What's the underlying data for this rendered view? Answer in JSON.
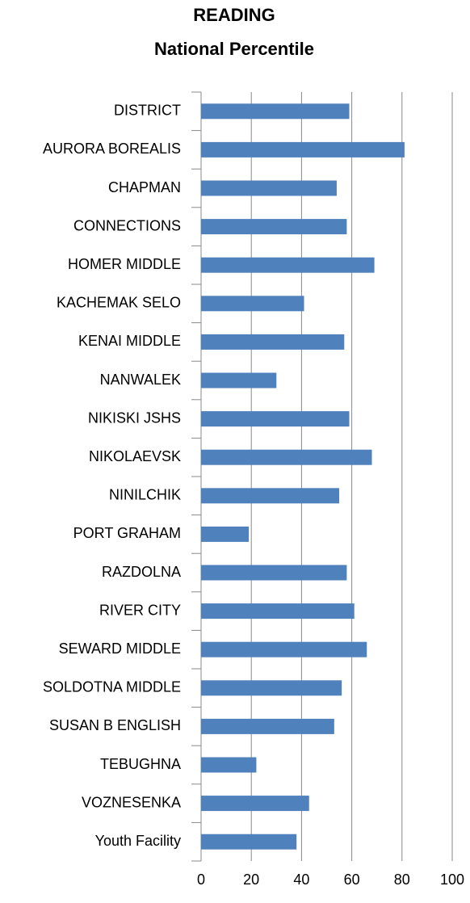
{
  "chart_data": {
    "type": "bar",
    "orientation": "horizontal",
    "title": "READING",
    "subtitle": "National Percentile",
    "categories": [
      "DISTRICT",
      "AURORA BOREALIS",
      "CHAPMAN",
      "CONNECTIONS",
      "HOMER MIDDLE",
      "KACHEMAK SELO",
      "KENAI MIDDLE",
      "NANWALEK",
      "NIKISKI JSHS",
      "NIKOLAEVSK",
      "NINILCHIK",
      "PORT GRAHAM",
      "RAZDOLNA",
      "RIVER CITY",
      "SEWARD MIDDLE",
      "SOLDOTNA MIDDLE",
      "SUSAN B ENGLISH",
      "TEBUGHNA",
      "VOZNESENKA",
      "Youth Facility"
    ],
    "values": [
      59,
      81,
      54,
      58,
      69,
      41,
      57,
      30,
      59,
      68,
      55,
      19,
      58,
      61,
      66,
      56,
      53,
      22,
      43,
      38
    ],
    "color": "#4f81bd",
    "xlim": [
      0,
      100
    ],
    "xticks": [
      0,
      20,
      40,
      60,
      80,
      100
    ],
    "grid": true
  }
}
